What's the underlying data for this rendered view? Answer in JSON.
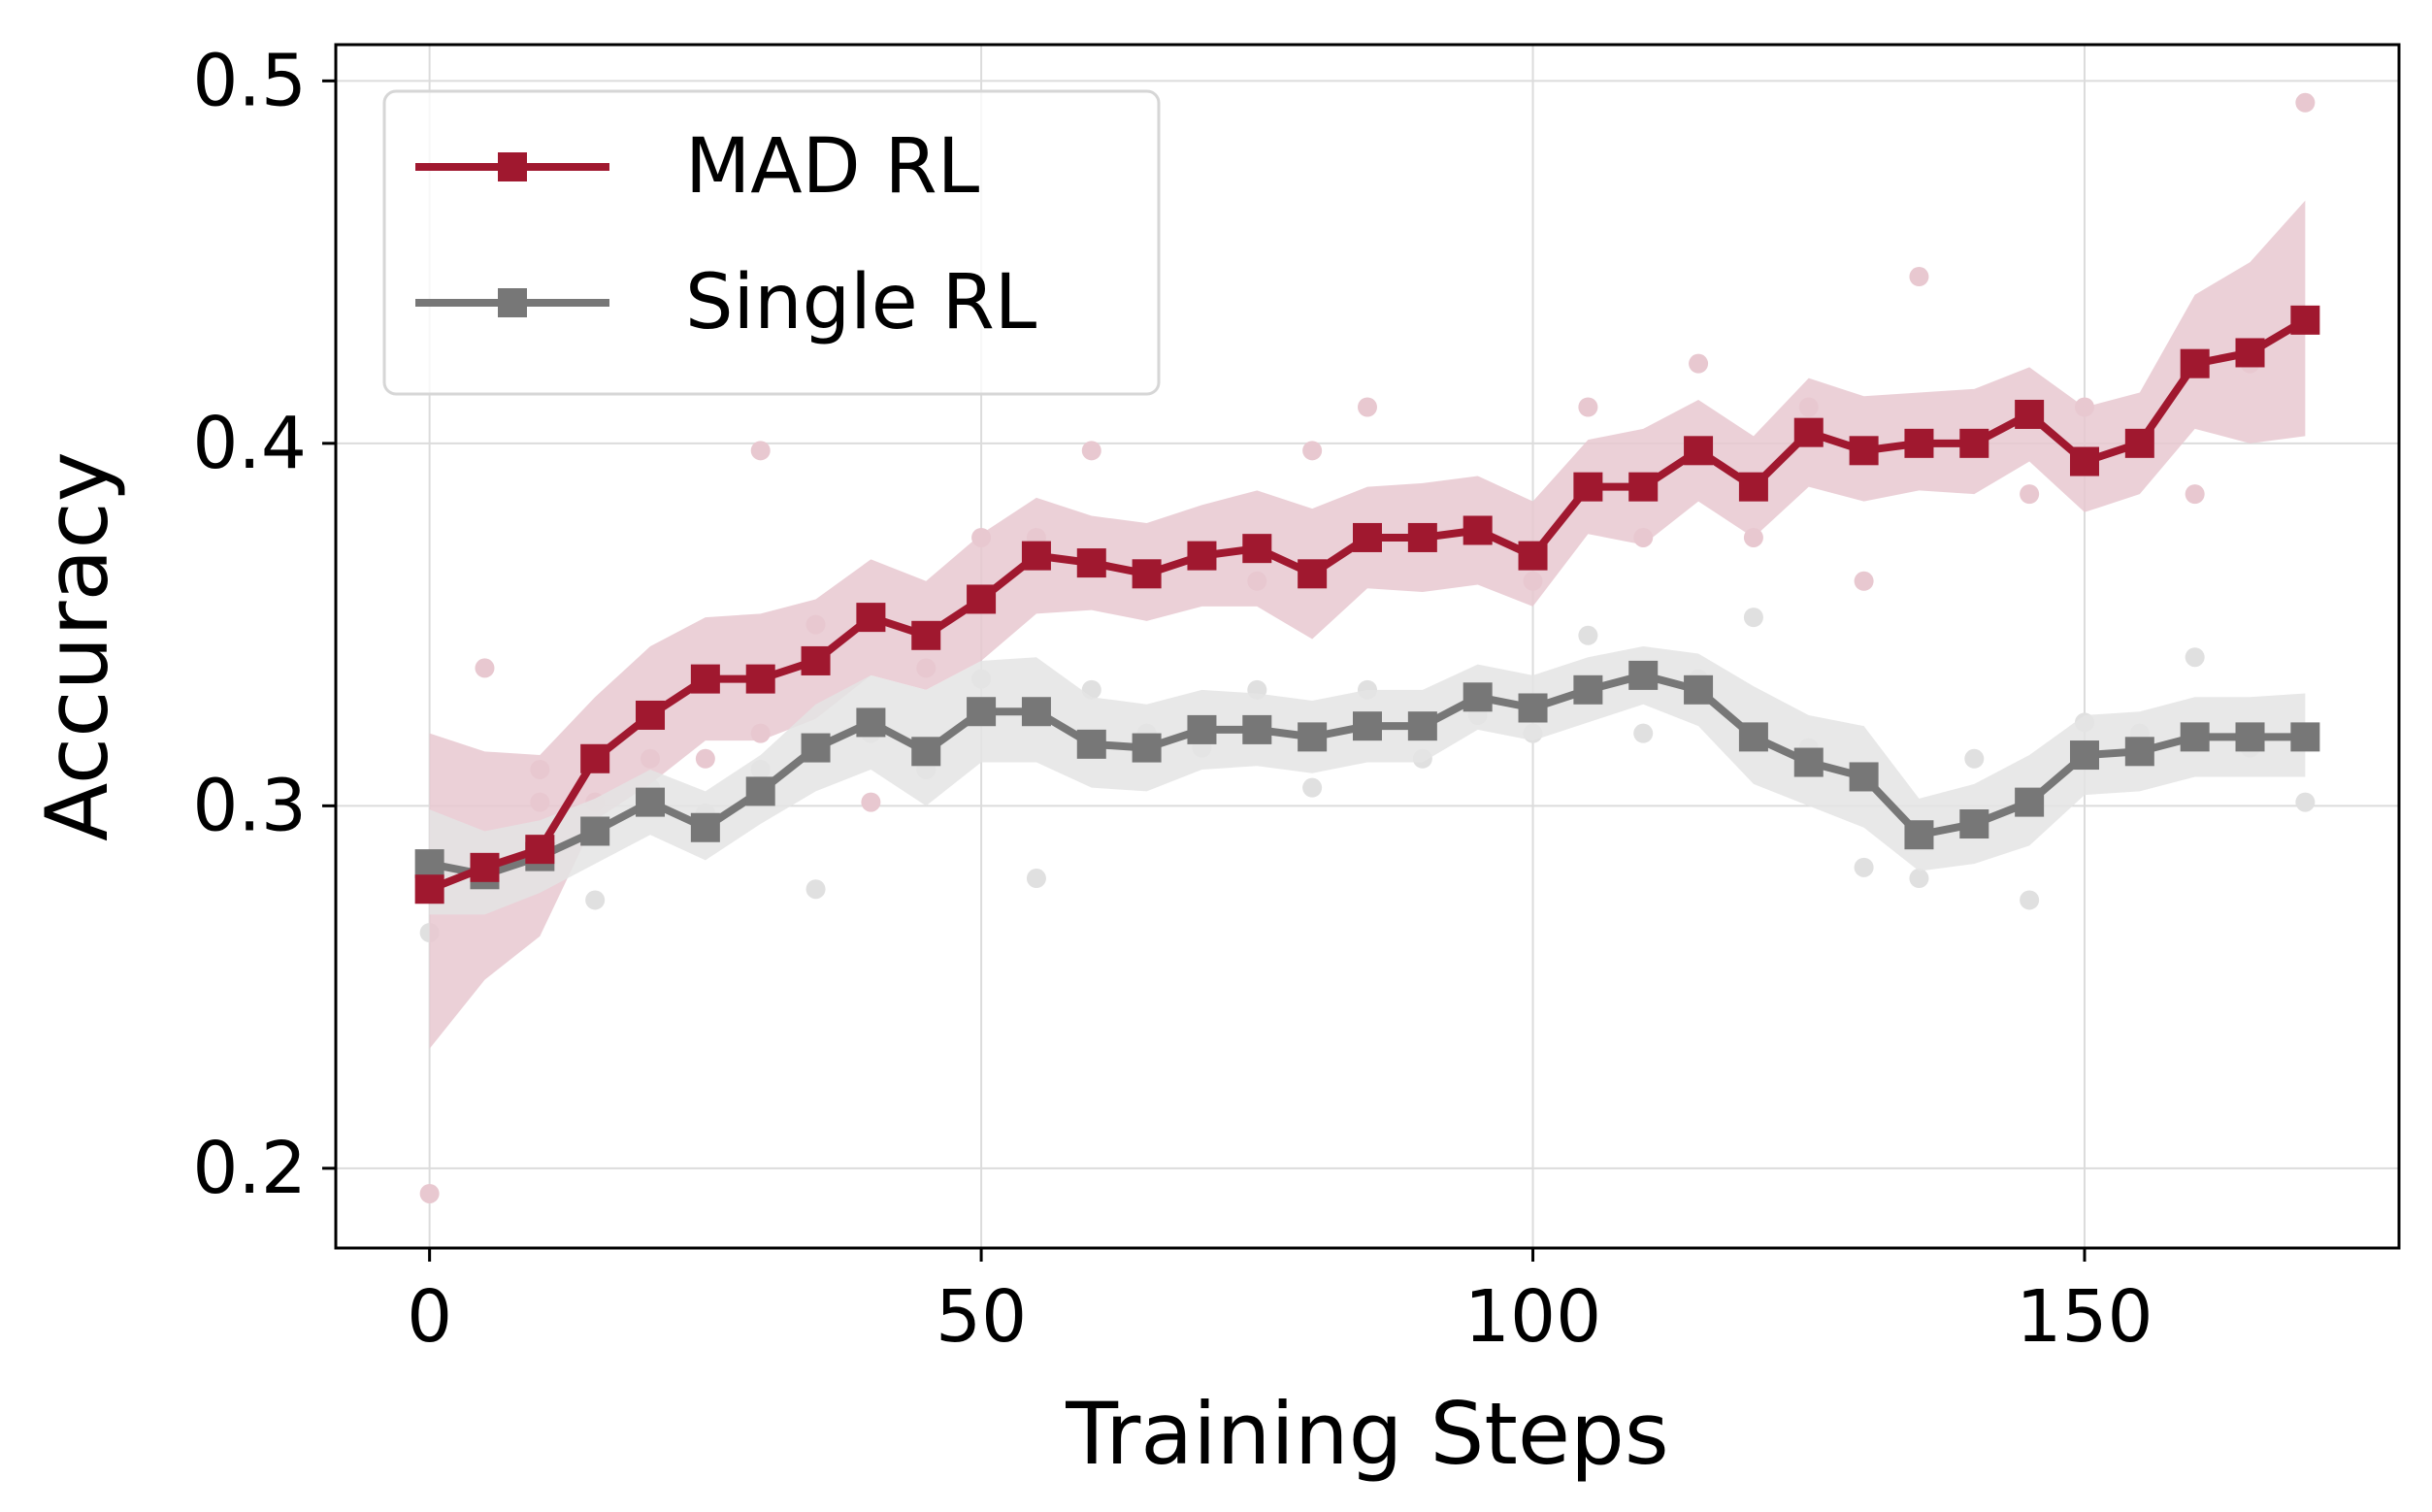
{
  "chart_data": {
    "type": "line",
    "title": "",
    "xlabel": "Training Steps",
    "ylabel": "Accuracy",
    "xlim": [
      -8.5,
      178.5
    ],
    "ylim": [
      0.178,
      0.51
    ],
    "xticks": [
      0,
      50,
      100,
      150
    ],
    "xtick_labels": [
      "0",
      "50",
      "100",
      "150"
    ],
    "yticks": [
      0.2,
      0.3,
      0.4,
      0.5
    ],
    "ytick_labels": [
      "0.2",
      "0.3",
      "0.4",
      "0.5"
    ],
    "grid": true,
    "legend_position": "top-left",
    "x": [
      0,
      5,
      10,
      15,
      20,
      25,
      30,
      35,
      40,
      45,
      50,
      55,
      60,
      65,
      70,
      75,
      80,
      85,
      90,
      95,
      100,
      105,
      110,
      115,
      120,
      125,
      130,
      135,
      140,
      145,
      150,
      155,
      160,
      165,
      170
    ],
    "series": [
      {
        "name": "MAD RL",
        "color": "#a0182f",
        "band_color": "#e8c8d0",
        "dot_color": "#e8c8d0",
        "values": [
          0.277,
          0.283,
          0.288,
          0.313,
          0.325,
          0.335,
          0.335,
          0.34,
          0.352,
          0.347,
          0.357,
          0.369,
          0.367,
          0.364,
          0.369,
          0.371,
          0.364,
          0.374,
          0.374,
          0.376,
          0.369,
          0.388,
          0.388,
          0.398,
          0.388,
          0.403,
          0.398,
          0.4,
          0.4,
          0.408,
          0.395,
          0.4,
          0.422,
          0.425,
          0.434
        ],
        "band_upper": [
          0.32,
          0.315,
          0.314,
          0.33,
          0.344,
          0.352,
          0.353,
          0.357,
          0.368,
          0.362,
          0.375,
          0.385,
          0.38,
          0.378,
          0.383,
          0.387,
          0.382,
          0.388,
          0.389,
          0.391,
          0.384,
          0.401,
          0.404,
          0.412,
          0.402,
          0.418,
          0.413,
          0.414,
          0.415,
          0.421,
          0.41,
          0.414,
          0.441,
          0.45,
          0.467
        ],
        "band_lower": [
          0.233,
          0.252,
          0.264,
          0.296,
          0.306,
          0.318,
          0.318,
          0.324,
          0.336,
          0.332,
          0.34,
          0.353,
          0.354,
          0.351,
          0.355,
          0.355,
          0.346,
          0.36,
          0.359,
          0.361,
          0.355,
          0.375,
          0.372,
          0.384,
          0.374,
          0.388,
          0.384,
          0.387,
          0.386,
          0.395,
          0.381,
          0.386,
          0.404,
          0.4,
          0.402
        ],
        "scatter": [
          [
            0,
            0.193
          ],
          [
            5,
            0.338
          ],
          [
            5,
            0.277
          ],
          [
            10,
            0.31
          ],
          [
            10,
            0.301
          ],
          [
            15,
            0.301
          ],
          [
            20,
            0.313
          ],
          [
            25,
            0.313
          ],
          [
            30,
            0.398
          ],
          [
            30,
            0.32
          ],
          [
            35,
            0.35
          ],
          [
            40,
            0.301
          ],
          [
            45,
            0.338
          ],
          [
            50,
            0.374
          ],
          [
            55,
            0.374
          ],
          [
            60,
            0.398
          ],
          [
            75,
            0.362
          ],
          [
            80,
            0.398
          ],
          [
            85,
            0.41
          ],
          [
            100,
            0.362
          ],
          [
            105,
            0.41
          ],
          [
            110,
            0.374
          ],
          [
            115,
            0.422
          ],
          [
            120,
            0.374
          ],
          [
            125,
            0.41
          ],
          [
            130,
            0.362
          ],
          [
            135,
            0.446
          ],
          [
            145,
            0.386
          ],
          [
            150,
            0.41
          ],
          [
            160,
            0.386
          ],
          [
            165,
            0.422
          ],
          [
            170,
            0.494
          ]
        ]
      },
      {
        "name": "Single RL",
        "color": "#777777",
        "band_color": "#e4e4e4",
        "dot_color": "#e0e0e0",
        "values": [
          0.284,
          0.281,
          0.286,
          0.293,
          0.301,
          0.294,
          0.304,
          0.316,
          0.323,
          0.315,
          0.326,
          0.326,
          0.317,
          0.316,
          0.321,
          0.321,
          0.319,
          0.322,
          0.322,
          0.33,
          0.327,
          0.332,
          0.336,
          0.332,
          0.319,
          0.312,
          0.308,
          0.292,
          0.295,
          0.301,
          0.314,
          0.315,
          0.319,
          0.319,
          0.319
        ],
        "band_upper": [
          0.299,
          0.293,
          0.296,
          0.302,
          0.31,
          0.304,
          0.314,
          0.328,
          0.336,
          0.332,
          0.34,
          0.341,
          0.33,
          0.328,
          0.332,
          0.331,
          0.329,
          0.332,
          0.332,
          0.339,
          0.336,
          0.341,
          0.344,
          0.342,
          0.333,
          0.325,
          0.322,
          0.302,
          0.306,
          0.314,
          0.325,
          0.326,
          0.33,
          0.33,
          0.331
        ],
        "band_lower": [
          0.27,
          0.27,
          0.276,
          0.284,
          0.292,
          0.285,
          0.295,
          0.304,
          0.31,
          0.3,
          0.312,
          0.312,
          0.305,
          0.304,
          0.31,
          0.311,
          0.309,
          0.312,
          0.312,
          0.321,
          0.318,
          0.323,
          0.328,
          0.322,
          0.306,
          0.3,
          0.294,
          0.282,
          0.284,
          0.289,
          0.303,
          0.304,
          0.308,
          0.308,
          0.308
        ],
        "scatter": [
          [
            0,
            0.265
          ],
          [
            5,
            0.277
          ],
          [
            10,
            0.286
          ],
          [
            15,
            0.274
          ],
          [
            20,
            0.305
          ],
          [
            25,
            0.298
          ],
          [
            30,
            0.31
          ],
          [
            35,
            0.277
          ],
          [
            40,
            0.32
          ],
          [
            45,
            0.31
          ],
          [
            50,
            0.335
          ],
          [
            55,
            0.28
          ],
          [
            60,
            0.332
          ],
          [
            65,
            0.32
          ],
          [
            70,
            0.316
          ],
          [
            75,
            0.332
          ],
          [
            80,
            0.305
          ],
          [
            85,
            0.332
          ],
          [
            90,
            0.313
          ],
          [
            95,
            0.325
          ],
          [
            100,
            0.32
          ],
          [
            105,
            0.347
          ],
          [
            110,
            0.32
          ],
          [
            115,
            0.335
          ],
          [
            120,
            0.352
          ],
          [
            125,
            0.316
          ],
          [
            130,
            0.283
          ],
          [
            135,
            0.28
          ],
          [
            140,
            0.313
          ],
          [
            145,
            0.274
          ],
          [
            150,
            0.323
          ],
          [
            155,
            0.32
          ],
          [
            160,
            0.341
          ],
          [
            165,
            0.316
          ],
          [
            170,
            0.301
          ]
        ]
      }
    ]
  }
}
